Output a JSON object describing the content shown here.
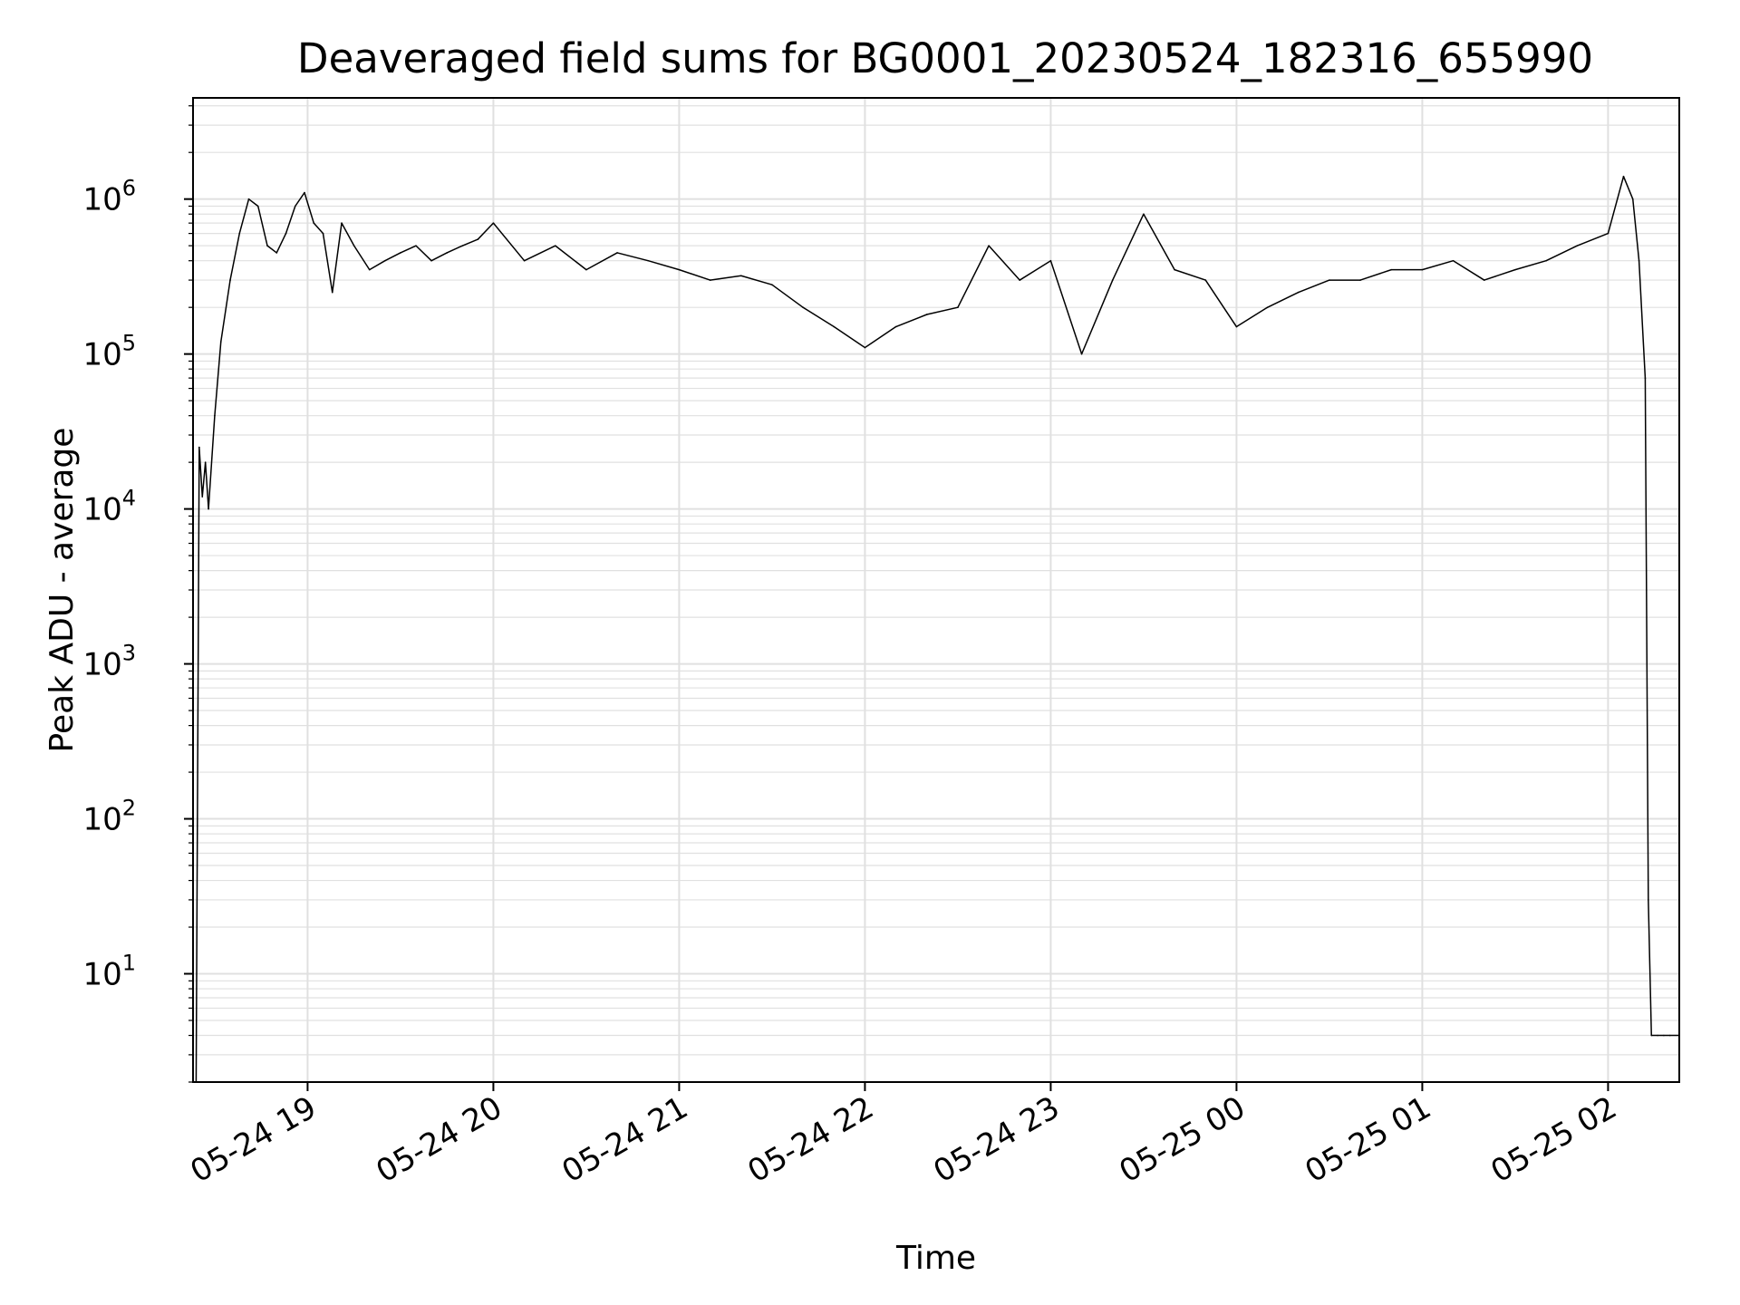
{
  "chart_data": {
    "type": "line",
    "title": "Deaveraged field sums for BG0001_20230524_182316_655990",
    "xlabel": "Time",
    "ylabel": "Peak ADU - average",
    "yscale": "log",
    "ylim": [
      2,
      4500000
    ],
    "xlim": [
      "2023-05-24 18:23",
      "2023-05-25 02:23"
    ],
    "grid": true,
    "x_ticks": [
      {
        "value": "2023-05-24 19:00",
        "label": "05-24 19"
      },
      {
        "value": "2023-05-24 20:00",
        "label": "05-24 20"
      },
      {
        "value": "2023-05-24 21:00",
        "label": "05-24 21"
      },
      {
        "value": "2023-05-24 22:00",
        "label": "05-24 22"
      },
      {
        "value": "2023-05-24 23:00",
        "label": "05-24 23"
      },
      {
        "value": "2023-05-25 00:00",
        "label": "05-25 00"
      },
      {
        "value": "2023-05-25 01:00",
        "label": "05-25 01"
      },
      {
        "value": "2023-05-25 02:00",
        "label": "05-25 02"
      }
    ],
    "y_ticks": [
      {
        "value": 10,
        "base": "10",
        "exp": "1"
      },
      {
        "value": 100,
        "base": "10",
        "exp": "2"
      },
      {
        "value": 1000,
        "base": "10",
        "exp": "3"
      },
      {
        "value": 10000,
        "base": "10",
        "exp": "4"
      },
      {
        "value": 100000,
        "base": "10",
        "exp": "5"
      },
      {
        "value": 1000000,
        "base": "10",
        "exp": "6"
      }
    ],
    "line_color": "#000000",
    "grid_color": "#e0e0e0",
    "series": [
      {
        "x": [
          "2023-05-24 18:23",
          "2023-05-24 18:24",
          "2023-05-24 18:25",
          "2023-05-24 18:26",
          "2023-05-24 18:27",
          "2023-05-24 18:28",
          "2023-05-24 18:30",
          "2023-05-24 18:32",
          "2023-05-24 18:35",
          "2023-05-24 18:38",
          "2023-05-24 18:41",
          "2023-05-24 18:44",
          "2023-05-24 18:47",
          "2023-05-24 18:50",
          "2023-05-24 18:53",
          "2023-05-24 18:56",
          "2023-05-24 18:59",
          "2023-05-24 19:02",
          "2023-05-24 19:05",
          "2023-05-24 19:08",
          "2023-05-24 19:11",
          "2023-05-24 19:15",
          "2023-05-24 19:20",
          "2023-05-24 19:25",
          "2023-05-24 19:30",
          "2023-05-24 19:35",
          "2023-05-24 19:40",
          "2023-05-24 19:45",
          "2023-05-24 19:50",
          "2023-05-24 19:55",
          "2023-05-24 20:00",
          "2023-05-24 20:10",
          "2023-05-24 20:20",
          "2023-05-24 20:30",
          "2023-05-24 20:40",
          "2023-05-24 20:50",
          "2023-05-24 21:00",
          "2023-05-24 21:10",
          "2023-05-24 21:20",
          "2023-05-24 21:30",
          "2023-05-24 21:40",
          "2023-05-24 21:50",
          "2023-05-24 22:00",
          "2023-05-24 22:10",
          "2023-05-24 22:20",
          "2023-05-24 22:30",
          "2023-05-24 22:40",
          "2023-05-24 22:50",
          "2023-05-24 23:00",
          "2023-05-24 23:10",
          "2023-05-24 23:20",
          "2023-05-24 23:30",
          "2023-05-24 23:40",
          "2023-05-24 23:50",
          "2023-05-25 00:00",
          "2023-05-25 00:10",
          "2023-05-25 00:20",
          "2023-05-25 00:30",
          "2023-05-25 00:40",
          "2023-05-25 00:50",
          "2023-05-25 01:00",
          "2023-05-25 01:10",
          "2023-05-25 01:20",
          "2023-05-25 01:30",
          "2023-05-25 01:40",
          "2023-05-25 01:50",
          "2023-05-25 02:00",
          "2023-05-25 02:05",
          "2023-05-25 02:08",
          "2023-05-25 02:10",
          "2023-05-25 02:12",
          "2023-05-25 02:13",
          "2023-05-25 02:14",
          "2023-05-25 02:16",
          "2023-05-25 02:18",
          "2023-05-25 02:20",
          "2023-05-25 02:23"
        ],
        "values": [
          2,
          2,
          25000,
          12000,
          20000,
          10000,
          40000,
          120000,
          300000,
          600000,
          1000000,
          900000,
          500000,
          450000,
          600000,
          900000,
          1100000,
          700000,
          600000,
          250000,
          700000,
          500000,
          350000,
          400000,
          450000,
          500000,
          400000,
          450000,
          500000,
          550000,
          700000,
          400000,
          500000,
          350000,
          450000,
          400000,
          350000,
          300000,
          320000,
          280000,
          200000,
          150000,
          110000,
          150000,
          180000,
          200000,
          500000,
          300000,
          400000,
          100000,
          300000,
          800000,
          350000,
          300000,
          150000,
          200000,
          250000,
          300000,
          300000,
          350000,
          350000,
          400000,
          300000,
          350000,
          400000,
          500000,
          600000,
          1400000,
          1000000,
          400000,
          70000,
          30,
          4,
          4,
          4,
          4,
          4
        ]
      }
    ]
  }
}
